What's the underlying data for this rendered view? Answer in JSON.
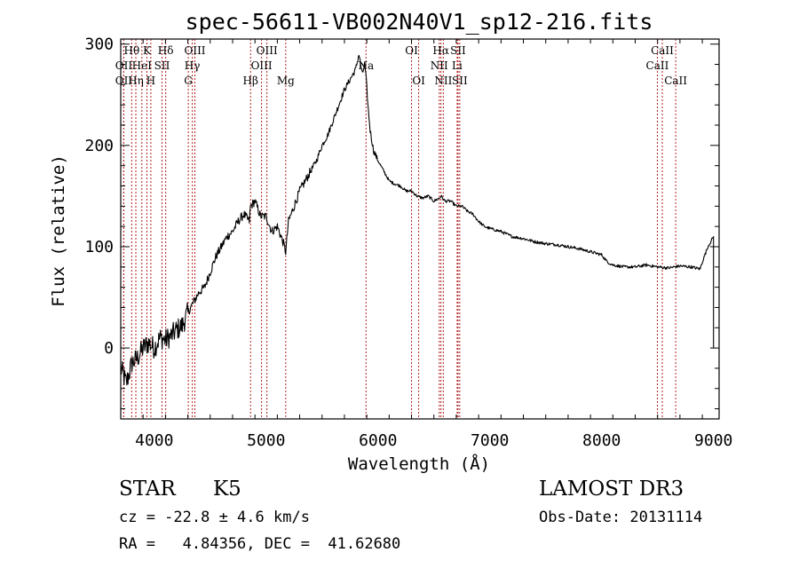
{
  "chart_data": {
    "type": "line",
    "title": "spec-56611-VB002N40V1_sp12-216.fits",
    "xlabel": "Wavelength (Å)",
    "ylabel": "Flux (relative)",
    "xlim": [
      3700,
      9050
    ],
    "ylim": [
      -70,
      305
    ],
    "xticks": [
      4000,
      5000,
      6000,
      7000,
      8000,
      9000
    ],
    "yticks": [
      0,
      100,
      200,
      300
    ],
    "grid": false,
    "series": [
      {
        "name": "flux",
        "color": "#000000",
        "x": [
          3700,
          3750,
          3800,
          3850,
          3900,
          3950,
          4000,
          4050,
          4100,
          4150,
          4200,
          4250,
          4300,
          4350,
          4400,
          4450,
          4500,
          4550,
          4600,
          4650,
          4700,
          4750,
          4800,
          4850,
          4860,
          4900,
          4950,
          5000,
          5050,
          5100,
          5150,
          5175,
          5200,
          5250,
          5300,
          5350,
          5400,
          5450,
          5500,
          5550,
          5600,
          5650,
          5700,
          5750,
          5800,
          5830,
          5860,
          5880,
          5895,
          5910,
          5930,
          5960,
          6000,
          6050,
          6100,
          6150,
          6200,
          6250,
          6300,
          6350,
          6400,
          6450,
          6500,
          6550,
          6563,
          6600,
          6650,
          6700,
          6750,
          6800,
          6850,
          6900,
          6950,
          7000,
          7100,
          7200,
          7300,
          7400,
          7500,
          7600,
          7700,
          7800,
          7900,
          8000,
          8050,
          8100,
          8200,
          8300,
          8400,
          8500,
          8600,
          8700,
          8800,
          8880,
          8900,
          8950,
          9000
        ],
        "y": [
          -20,
          -35,
          -15,
          -10,
          0,
          5,
          0,
          10,
          8,
          12,
          18,
          22,
          35,
          45,
          55,
          60,
          75,
          90,
          100,
          110,
          115,
          125,
          132,
          125,
          140,
          145,
          130,
          130,
          115,
          120,
          105,
          95,
          125,
          140,
          155,
          165,
          175,
          185,
          200,
          210,
          225,
          240,
          255,
          265,
          275,
          290,
          270,
          280,
          265,
          240,
          215,
          195,
          185,
          175,
          165,
          162,
          160,
          155,
          155,
          150,
          148,
          150,
          145,
          148,
          150,
          145,
          145,
          140,
          140,
          135,
          132,
          125,
          120,
          118,
          115,
          110,
          108,
          105,
          103,
          102,
          100,
          98,
          95,
          92,
          85,
          82,
          80,
          80,
          82,
          80,
          79,
          81,
          80,
          78,
          85,
          100,
          110
        ]
      }
    ],
    "lines": [
      {
        "label": "Hθ",
        "wave": 3798,
        "row": 0
      },
      {
        "label": "OII",
        "wave": 3727,
        "row": 1
      },
      {
        "label": "OII",
        "wave": 3727,
        "row": 2
      },
      {
        "label": "K",
        "wave": 3934,
        "row": 0
      },
      {
        "label": "HeI",
        "wave": 3889,
        "row": 1
      },
      {
        "label": "Hη",
        "wave": 3835,
        "row": 2
      },
      {
        "label": "Hδ",
        "wave": 4102,
        "row": 0
      },
      {
        "label": "SII",
        "wave": 4069,
        "row": 1
      },
      {
        "label": "H",
        "wave": 3969,
        "row": 2
      },
      {
        "label": "OIII",
        "wave": 4363,
        "row": 0
      },
      {
        "label": "Hγ",
        "wave": 4340,
        "row": 1
      },
      {
        "label": "G",
        "wave": 4304,
        "row": 2
      },
      {
        "label": "OIII",
        "wave": 5007,
        "row": 0
      },
      {
        "label": "OIII",
        "wave": 4959,
        "row": 1
      },
      {
        "label": "Hβ",
        "wave": 4861,
        "row": 2
      },
      {
        "label": "Mg",
        "wave": 5175,
        "row": 2
      },
      {
        "label": "Na",
        "wave": 5893,
        "row": 1
      },
      {
        "label": "OI",
        "wave": 6300,
        "row": 0
      },
      {
        "label": "OI",
        "wave": 6364,
        "row": 2
      },
      {
        "label": "Hα",
        "wave": 6563,
        "row": 0
      },
      {
        "label": "SII",
        "wave": 6716,
        "row": 0
      },
      {
        "label": "NII",
        "wave": 6548,
        "row": 1
      },
      {
        "label": "Li",
        "wave": 6708,
        "row": 1
      },
      {
        "label": "NII",
        "wave": 6584,
        "row": 2
      },
      {
        "label": "SII",
        "wave": 6731,
        "row": 2
      },
      {
        "label": "CaII",
        "wave": 8542,
        "row": 0
      },
      {
        "label": "CaII",
        "wave": 8498,
        "row": 1
      },
      {
        "label": "CaII",
        "wave": 8662,
        "row": 2
      }
    ]
  },
  "info": {
    "object_class": "STAR",
    "subclass": "K5",
    "survey": "LAMOST DR3",
    "redshift": "cz = -22.8 ± 4.6 km/s",
    "obs_date": "Obs-Date: 20131114",
    "coords": "RA =   4.84356, DEC =  41.62680"
  }
}
